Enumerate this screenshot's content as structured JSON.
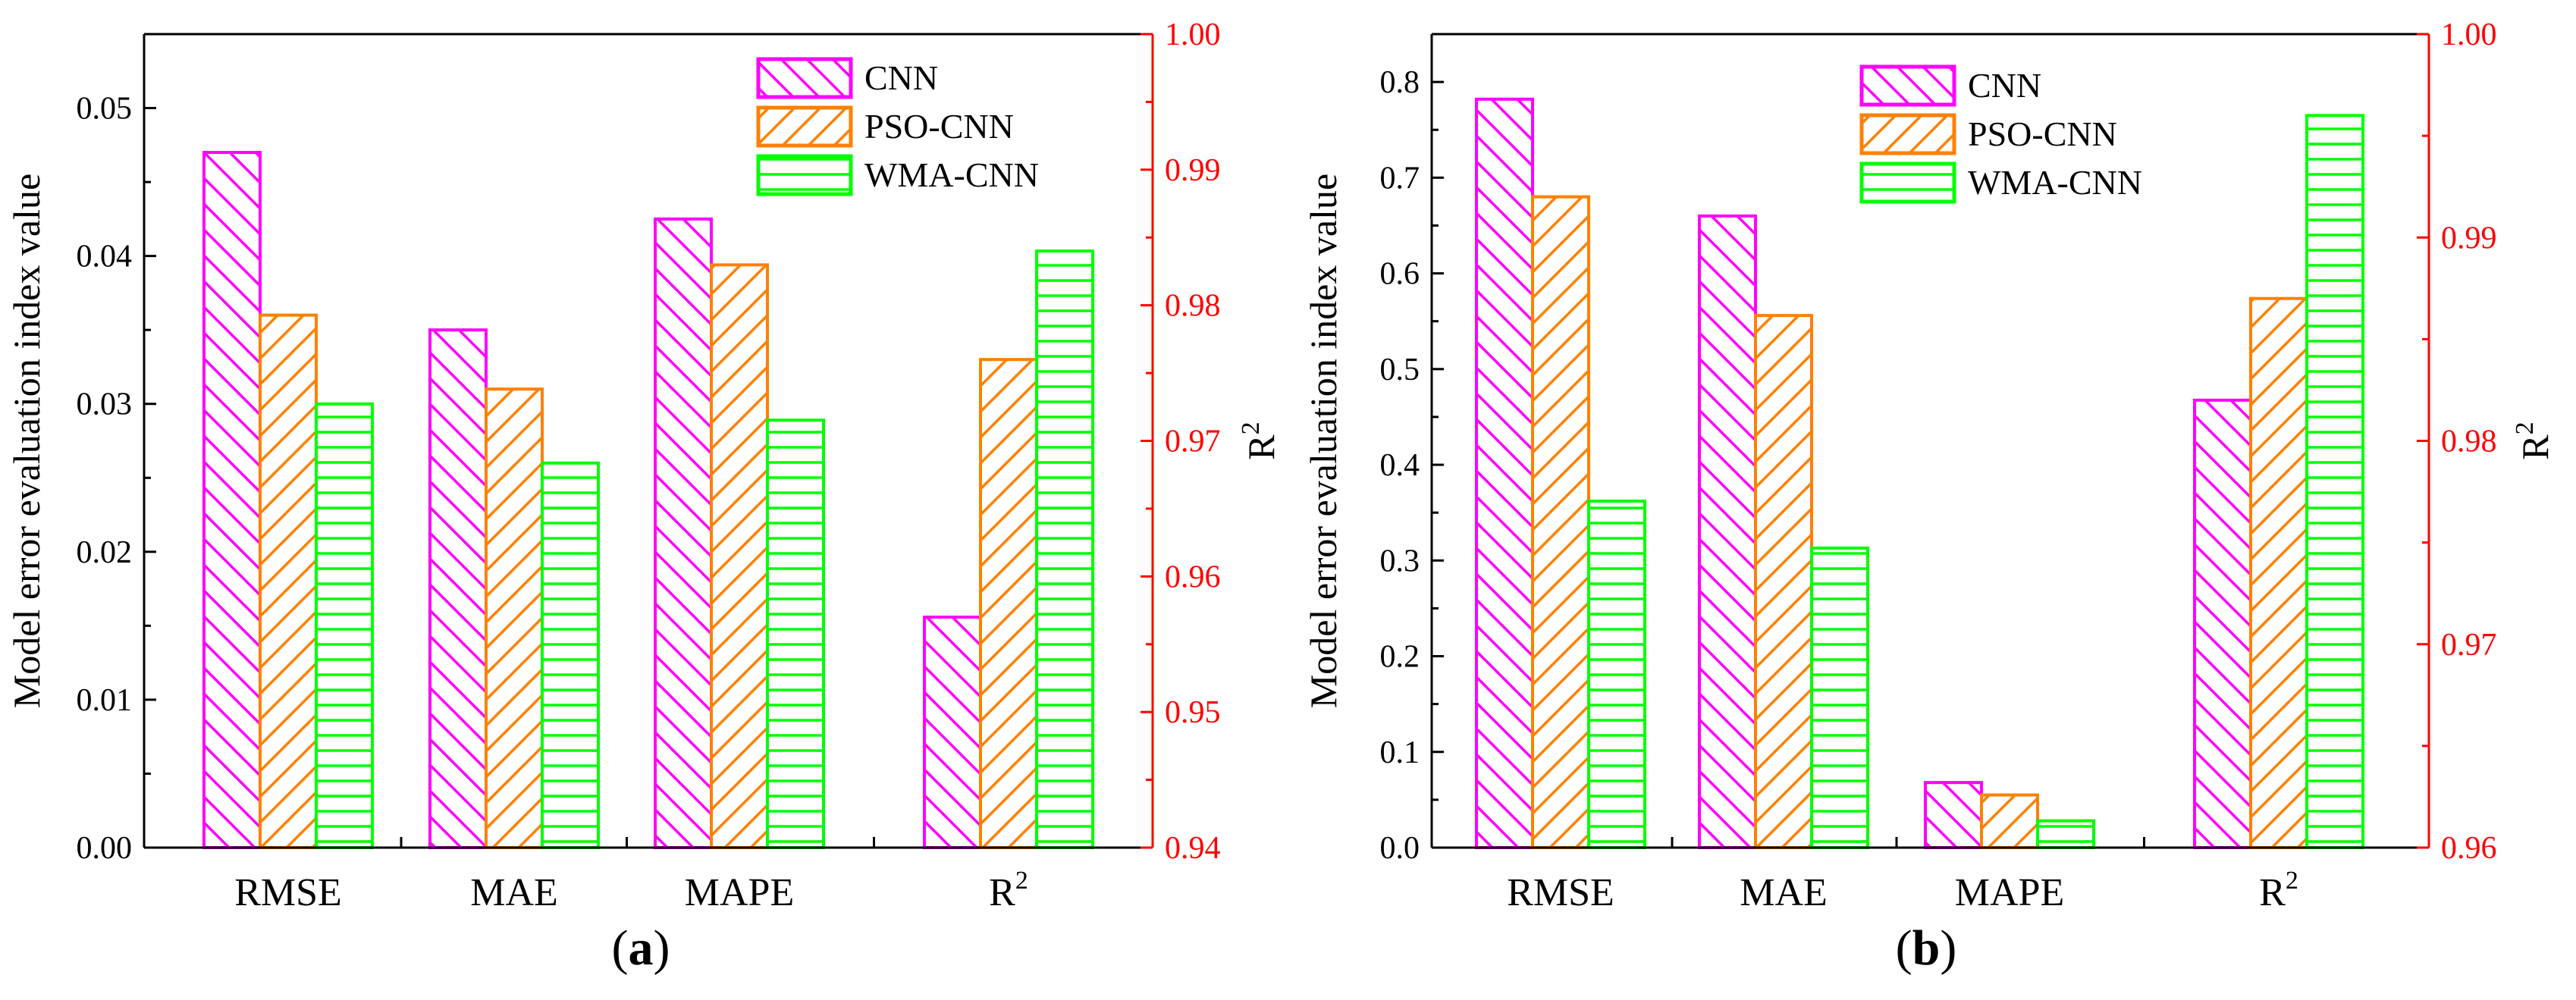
{
  "colors": {
    "CNN": "#ff00ff",
    "PSO-CNN": "#ff8000",
    "WMA-CNN": "#00ff00",
    "right_axis": "#ff0000"
  },
  "chart_data": [
    {
      "type": "bar",
      "panel_label": "a",
      "categories": [
        "RMSE",
        "MAE",
        "MAPE",
        "R2"
      ],
      "category_labels": [
        "RMSE",
        "MAE",
        "MAPE",
        "R"
      ],
      "r2_superscript": "2",
      "series": [
        {
          "name": "CNN",
          "values": [
            0.047,
            0.035,
            0.0425,
            0.957
          ]
        },
        {
          "name": "PSO-CNN",
          "values": [
            0.036,
            0.031,
            0.0394,
            0.976
          ]
        },
        {
          "name": "WMA-CNN",
          "values": [
            0.03,
            0.026,
            0.0289,
            0.984
          ]
        }
      ],
      "ylabel": "Model error evaluation index value",
      "ylim": [
        0,
        0.055
      ],
      "yticks": [
        "0.00",
        "0.01",
        "0.02",
        "0.03",
        "0.04",
        "0.05"
      ],
      "ylabel_right": "R",
      "ylabel_right_sup": "2",
      "ylim_right": [
        0.94,
        1.0
      ],
      "yticks_right": [
        "0.94",
        "0.95",
        "0.96",
        "0.97",
        "0.98",
        "0.99",
        "1.00"
      ],
      "legend_position": "top-right"
    },
    {
      "type": "bar",
      "panel_label": "b",
      "categories": [
        "RMSE",
        "MAE",
        "MAPE",
        "R2"
      ],
      "category_labels": [
        "RMSE",
        "MAE",
        "MAPE",
        "R"
      ],
      "r2_superscript": "2",
      "series": [
        {
          "name": "CNN",
          "values": [
            0.782,
            0.66,
            0.068,
            0.982
          ]
        },
        {
          "name": "PSO-CNN",
          "values": [
            0.68,
            0.556,
            0.055,
            0.987
          ]
        },
        {
          "name": "WMA-CNN",
          "values": [
            0.362,
            0.313,
            0.028,
            0.996
          ]
        }
      ],
      "ylabel": "Model error evaluation index value",
      "ylim": [
        0,
        0.85
      ],
      "yticks": [
        "0.0",
        "0.1",
        "0.2",
        "0.3",
        "0.4",
        "0.5",
        "0.6",
        "0.7",
        "0.8"
      ],
      "ylabel_right": "R",
      "ylabel_right_sup": "2",
      "ylim_right": [
        0.96,
        1.0
      ],
      "yticks_right": [
        "0.96",
        "0.97",
        "0.98",
        "0.99",
        "1.00"
      ],
      "legend_position": "top-right"
    }
  ]
}
